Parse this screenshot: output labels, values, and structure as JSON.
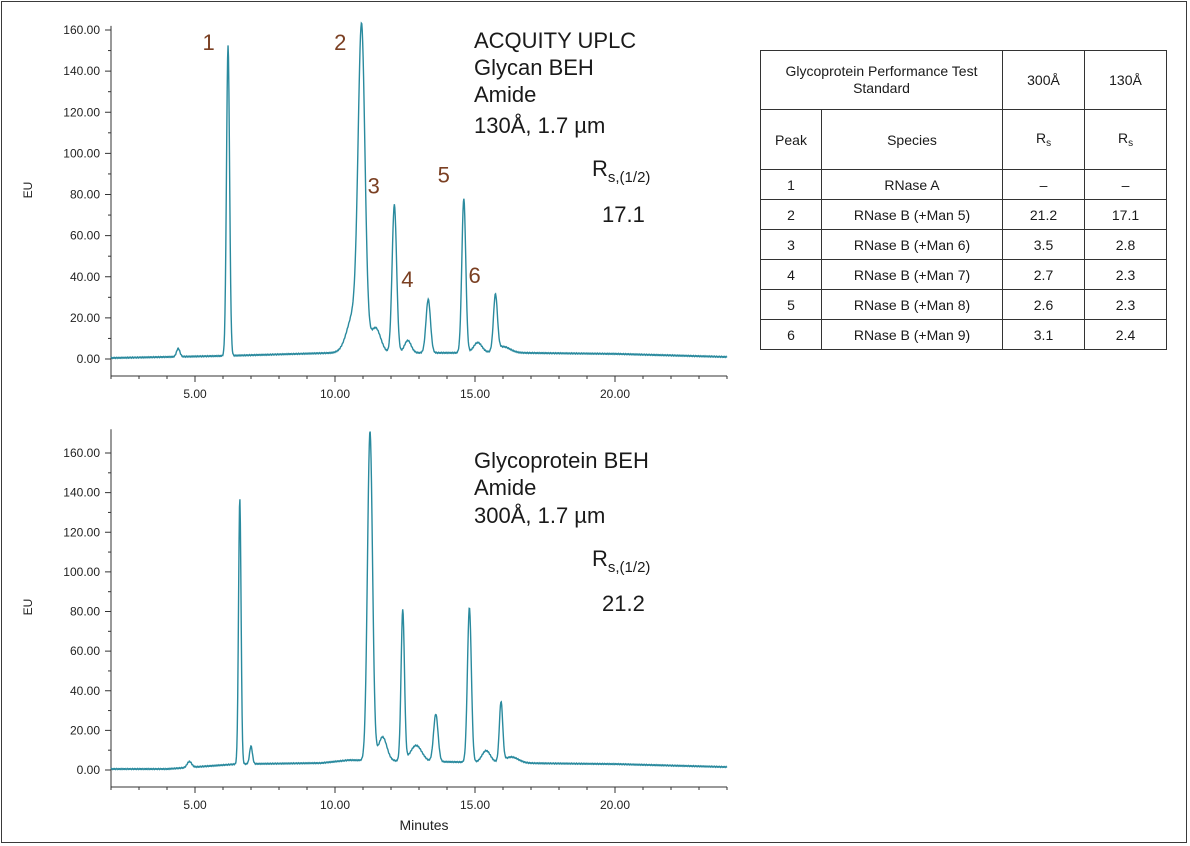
{
  "table": {
    "title": "Glycoprotein Performance Test Standard",
    "col_300": "300Å",
    "col_130": "130Å",
    "peak_header": "Peak",
    "species_header": "Species",
    "rs_header": "R",
    "rs_header_sub": "s",
    "rows": [
      {
        "peak": "1",
        "species": "RNase A",
        "rs300": "–",
        "rs130": "–"
      },
      {
        "peak": "2",
        "species": "RNase B (+Man 5)",
        "rs300": "21.2",
        "rs130": "17.1"
      },
      {
        "peak": "3",
        "species": "RNase B (+Man 6)",
        "rs300": "3.5",
        "rs130": "2.8"
      },
      {
        "peak": "4",
        "species": "RNase B (+Man 7)",
        "rs300": "2.7",
        "rs130": "2.3"
      },
      {
        "peak": "5",
        "species": "RNase B (+Man 8)",
        "rs300": "2.6",
        "rs130": "2.3"
      },
      {
        "peak": "6",
        "species": "RNase B (+Man 9)",
        "rs300": "3.1",
        "rs130": "2.4"
      }
    ]
  },
  "chart_data": [
    {
      "type": "line",
      "xlabel": "",
      "ylabel": "EU",
      "xlim": [
        2,
        24
      ],
      "ylim": [
        -8,
        162
      ],
      "x_ticks": [
        "5.00",
        "10.00",
        "15.00",
        "20.00"
      ],
      "y_ticks": [
        "0.00",
        "20.00",
        "40.00",
        "60.00",
        "80.00",
        "100.00",
        "120.00",
        "140.00",
        "160.00"
      ],
      "color": "#2a8a9e",
      "annotations": {
        "line1": "ACQUITY UPLC",
        "line2": "Glycan BEH",
        "line3": "Amide",
        "line4": "130Å, 1.7 µm",
        "rs_label": "R",
        "rs_sub": "s,(1/2)",
        "rs_value": "17.1"
      },
      "peak_labels": [
        {
          "label": "1",
          "x": 6.2
        },
        {
          "label": "2",
          "x": 10.9
        },
        {
          "label": "3",
          "x": 12.1
        },
        {
          "label": "4",
          "x": 13.3
        },
        {
          "label": "5",
          "x": 14.6
        },
        {
          "label": "6",
          "x": 15.7
        }
      ],
      "baseline": [
        [
          2.0,
          0.5
        ],
        [
          6.0,
          1.5
        ],
        [
          10.0,
          3.0
        ],
        [
          16.5,
          3.0
        ],
        [
          20.0,
          2.5
        ],
        [
          24.0,
          1.0
        ]
      ],
      "peaks": [
        {
          "x": 4.4,
          "y": 4,
          "w": 0.06
        },
        {
          "x": 6.18,
          "y": 151,
          "w": 0.055
        },
        {
          "x": 10.95,
          "y": 148,
          "w": 0.12
        },
        {
          "x": 10.7,
          "y": 20,
          "w": 0.25
        },
        {
          "x": 11.45,
          "y": 12,
          "w": 0.18
        },
        {
          "x": 12.12,
          "y": 72,
          "w": 0.08
        },
        {
          "x": 12.6,
          "y": 6,
          "w": 0.12
        },
        {
          "x": 13.33,
          "y": 26,
          "w": 0.08
        },
        {
          "x": 14.6,
          "y": 75,
          "w": 0.07
        },
        {
          "x": 15.1,
          "y": 5,
          "w": 0.15
        },
        {
          "x": 15.73,
          "y": 27,
          "w": 0.07
        },
        {
          "x": 16.0,
          "y": 3,
          "w": 0.25
        }
      ]
    },
    {
      "type": "line",
      "xlabel": "Minutes",
      "ylabel": "EU",
      "xlim": [
        2,
        24
      ],
      "ylim": [
        -8,
        172
      ],
      "x_ticks": [
        "5.00",
        "10.00",
        "15.00",
        "20.00"
      ],
      "y_ticks": [
        "0.00",
        "20.00",
        "40.00",
        "60.00",
        "80.00",
        "100.00",
        "120.00",
        "140.00",
        "160.00"
      ],
      "color": "#2a8a9e",
      "annotations": {
        "line1": "Glycoprotein BEH",
        "line2": "Amide",
        "line3": "300Å, 1.7 µm",
        "rs_label": "R",
        "rs_sub": "s,(1/2)",
        "rs_value": "21.2"
      },
      "peak_labels": [],
      "baseline": [
        [
          2.0,
          0.5
        ],
        [
          4.0,
          0.5
        ],
        [
          5.5,
          2.0
        ],
        [
          6.5,
          3.0
        ],
        [
          9.5,
          3.5
        ],
        [
          10.5,
          5.0
        ],
        [
          16.5,
          3.5
        ],
        [
          20.0,
          3.0
        ],
        [
          24.0,
          1.5
        ]
      ],
      "peaks": [
        {
          "x": 4.8,
          "y": 3,
          "w": 0.08
        },
        {
          "x": 6.6,
          "y": 134,
          "w": 0.045
        },
        {
          "x": 7.0,
          "y": 9,
          "w": 0.05
        },
        {
          "x": 11.25,
          "y": 166,
          "w": 0.09
        },
        {
          "x": 11.7,
          "y": 12,
          "w": 0.15
        },
        {
          "x": 12.42,
          "y": 76,
          "w": 0.06
        },
        {
          "x": 12.9,
          "y": 8,
          "w": 0.2
        },
        {
          "x": 13.6,
          "y": 24,
          "w": 0.08
        },
        {
          "x": 14.8,
          "y": 78,
          "w": 0.07
        },
        {
          "x": 15.4,
          "y": 6,
          "w": 0.15
        },
        {
          "x": 15.93,
          "y": 30,
          "w": 0.06
        },
        {
          "x": 16.3,
          "y": 3,
          "w": 0.25
        }
      ]
    }
  ]
}
